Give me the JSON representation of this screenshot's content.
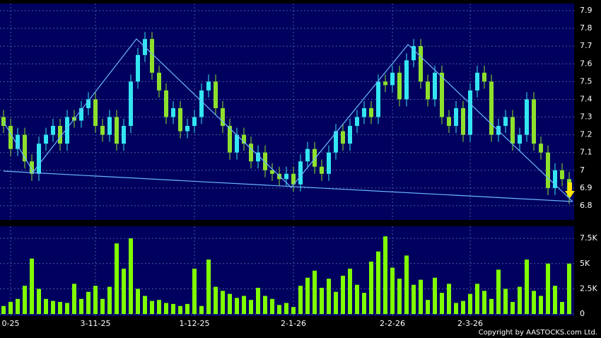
{
  "chart_data": {
    "type": "candlestick",
    "categories": [
      null,
      "0-25",
      null,
      null,
      null,
      null,
      null,
      null,
      null,
      null,
      null,
      null,
      null,
      "3-11-25",
      null,
      null,
      null,
      null,
      null,
      null,
      null,
      null,
      null,
      null,
      null,
      null,
      null,
      "1-12-25",
      null,
      null,
      null,
      null,
      null,
      null,
      null,
      null,
      null,
      null,
      null,
      null,
      null,
      "2-1-26",
      null,
      null,
      null,
      null,
      null,
      null,
      null,
      null,
      null,
      null,
      null,
      null,
      null,
      "2-2-26",
      null,
      null,
      null,
      null,
      null,
      null,
      null,
      null,
      null,
      null,
      "2-3-26",
      null,
      null,
      null,
      null,
      null,
      null,
      null,
      null,
      null,
      null,
      null,
      null,
      null,
      null
    ],
    "open": [
      7.3,
      7.25,
      7.12,
      7.2,
      7.05,
      6.98,
      7.15,
      7.2,
      7.25,
      7.15,
      7.3,
      7.28,
      7.35,
      7.4,
      7.25,
      7.2,
      7.3,
      7.15,
      7.25,
      7.5,
      7.65,
      7.74,
      7.55,
      7.45,
      7.3,
      7.35,
      7.22,
      7.25,
      7.3,
      7.45,
      7.5,
      7.35,
      7.25,
      7.1,
      7.2,
      7.15,
      7.05,
      7.1,
      7.0,
      6.98,
      6.95,
      6.98,
      6.92,
      7.05,
      7.12,
      7.02,
      6.98,
      7.1,
      7.22,
      7.15,
      7.25,
      7.3,
      7.35,
      7.3,
      7.5,
      7.48,
      7.55,
      7.4,
      7.62,
      7.7,
      7.5,
      7.4,
      7.55,
      7.3,
      7.25,
      7.35,
      7.2,
      7.45,
      7.55,
      7.5,
      7.2,
      7.25,
      7.3,
      7.15,
      7.2,
      7.4,
      7.15,
      7.1,
      6.9,
      7.0,
      6.95
    ],
    "high": [
      7.34,
      7.29,
      7.24,
      7.24,
      7.09,
      7.19,
      7.24,
      7.29,
      7.29,
      7.34,
      7.34,
      7.39,
      7.44,
      7.44,
      7.29,
      7.34,
      7.34,
      7.29,
      7.54,
      7.69,
      7.78,
      7.78,
      7.59,
      7.49,
      7.39,
      7.39,
      7.29,
      7.34,
      7.49,
      7.54,
      7.54,
      7.39,
      7.29,
      7.24,
      7.24,
      7.19,
      7.14,
      7.14,
      7.04,
      7.02,
      7.02,
      7.02,
      7.09,
      7.16,
      7.16,
      7.06,
      7.14,
      7.26,
      7.26,
      7.29,
      7.34,
      7.39,
      7.39,
      7.54,
      7.54,
      7.59,
      7.59,
      7.66,
      7.74,
      7.74,
      7.54,
      7.59,
      7.59,
      7.34,
      7.39,
      7.39,
      7.49,
      7.59,
      7.59,
      7.54,
      7.29,
      7.34,
      7.34,
      7.24,
      7.44,
      7.44,
      7.19,
      7.14,
      7.04,
      7.04,
      6.99
    ],
    "low": [
      7.21,
      7.08,
      7.08,
      7.01,
      6.94,
      6.94,
      7.11,
      7.16,
      7.11,
      7.11,
      7.24,
      7.24,
      7.31,
      7.21,
      7.16,
      7.16,
      7.11,
      7.11,
      7.21,
      7.46,
      7.61,
      7.51,
      7.41,
      7.26,
      7.26,
      7.18,
      7.18,
      7.21,
      7.26,
      7.41,
      7.31,
      7.21,
      7.06,
      7.06,
      7.11,
      7.01,
      7.01,
      6.96,
      6.94,
      6.91,
      6.91,
      6.88,
      6.88,
      7.01,
      6.98,
      6.94,
      6.94,
      7.06,
      7.11,
      7.11,
      7.21,
      7.26,
      7.26,
      7.26,
      7.44,
      7.44,
      7.36,
      7.36,
      7.58,
      7.46,
      7.36,
      7.36,
      7.26,
      7.21,
      7.21,
      7.16,
      7.16,
      7.41,
      7.46,
      7.16,
      7.16,
      7.21,
      7.11,
      7.11,
      7.16,
      7.11,
      7.06,
      6.86,
      6.86,
      6.91,
      6.81
    ],
    "close": [
      7.25,
      7.12,
      7.2,
      7.05,
      6.98,
      7.15,
      7.2,
      7.25,
      7.15,
      7.3,
      7.28,
      7.35,
      7.4,
      7.25,
      7.2,
      7.3,
      7.15,
      7.25,
      7.5,
      7.65,
      7.74,
      7.55,
      7.45,
      7.3,
      7.35,
      7.22,
      7.25,
      7.3,
      7.45,
      7.5,
      7.35,
      7.25,
      7.1,
      7.2,
      7.15,
      7.05,
      7.1,
      7.0,
      6.98,
      6.95,
      6.98,
      6.92,
      7.05,
      7.12,
      7.02,
      6.98,
      7.1,
      7.22,
      7.15,
      7.25,
      7.3,
      7.35,
      7.3,
      7.5,
      7.48,
      7.55,
      7.4,
      7.62,
      7.7,
      7.5,
      7.4,
      7.55,
      7.3,
      7.25,
      7.35,
      7.2,
      7.45,
      7.55,
      7.5,
      7.2,
      7.25,
      7.3,
      7.15,
      7.2,
      7.4,
      7.15,
      7.1,
      6.9,
      7.0,
      6.95,
      6.85
    ],
    "volume": [
      800,
      1200,
      1500,
      2800,
      5500,
      2500,
      1500,
      1300,
      1200,
      1100,
      3000,
      1500,
      2200,
      2800,
      1500,
      2700,
      7000,
      4500,
      7500,
      2500,
      1800,
      1300,
      1400,
      1100,
      1000,
      800,
      1000,
      4500,
      800,
      5400,
      2700,
      2300,
      2000,
      1600,
      1800,
      1400,
      2600,
      1800,
      1500,
      900,
      1100,
      700,
      2800,
      3600,
      4300,
      2600,
      3500,
      2200,
      3800,
      4500,
      2900,
      2100,
      5200,
      6200,
      7700,
      4600,
      3500,
      5800,
      2900,
      3400,
      1400,
      3600,
      2100,
      3000,
      1100,
      1300,
      2000,
      3000,
      2300,
      1500,
      4400,
      2500,
      1200,
      2700,
      5400,
      2300,
      1800,
      5000,
      2800,
      1200,
      5000
    ],
    "up_color": "#33e6f2",
    "down_color": "#8fe02c",
    "volume_color": "#80ff00",
    "ylim": [
      6.72,
      7.94
    ],
    "yticks": [
      6.8,
      6.9,
      7,
      7.1,
      7.2,
      7.3,
      7.4,
      7.5,
      7.6,
      7.7,
      7.8,
      7.9
    ],
    "y2lim": [
      -200,
      8700
    ],
    "y2ticks": [
      0,
      {
        "value": 2500,
        "label": "2.5K"
      },
      {
        "value": 5000,
        "label": "5K"
      },
      {
        "value": 7500,
        "label": "7.5K"
      }
    ],
    "grid": true,
    "copyright": "Copyright by AASTOCKS.com Ltd."
  }
}
